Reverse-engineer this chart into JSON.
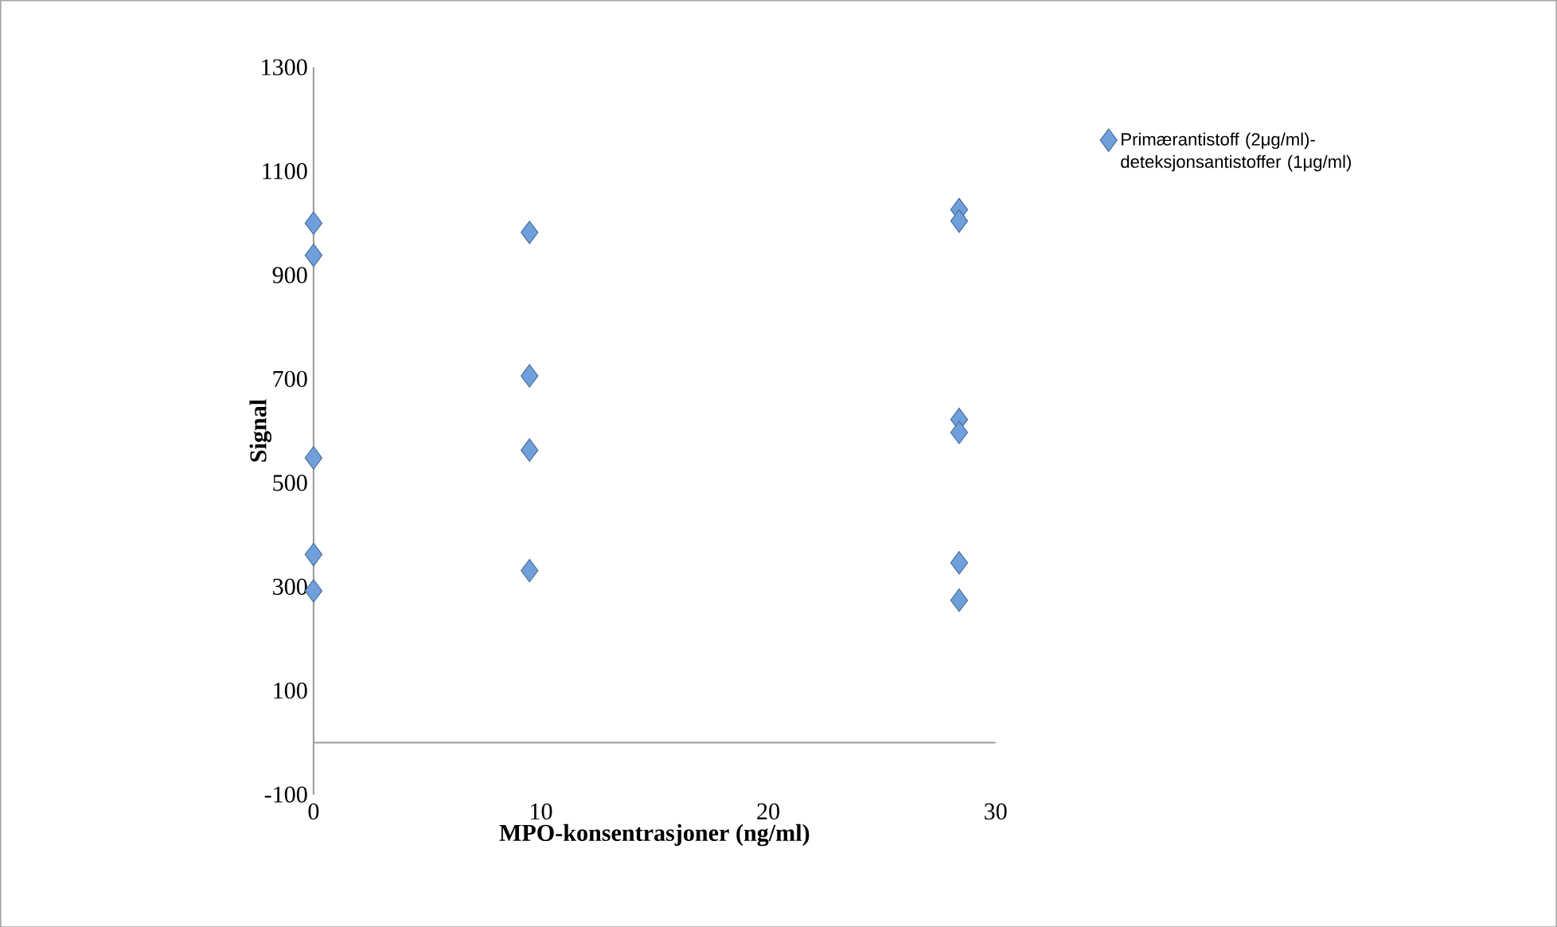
{
  "chart_data": {
    "type": "scatter",
    "xlabel": "MPO-konsentrasjoner (ng/ml)",
    "ylabel": "Signal",
    "xlim": [
      0,
      30
    ],
    "xticks": [
      0,
      10,
      20,
      30
    ],
    "ylim": [
      -100,
      1300
    ],
    "yticks": [
      -100,
      100,
      300,
      500,
      700,
      900,
      1100,
      1300
    ],
    "marker": "diamond",
    "legend": "top right",
    "series": [
      {
        "name": "Primærantistoff (2μg/ml)-deteksjonsantistoffer (1μg/ml)",
        "color": "#6fa0dc",
        "x": [
          0,
          0,
          0,
          0,
          0,
          9.5,
          9.5,
          9.5,
          9.5,
          28.4,
          28.4,
          28.4,
          28.4,
          28.4,
          28.4
        ],
        "values": [
          1000,
          938,
          548,
          362,
          292,
          982,
          706,
          563,
          331,
          1026,
          1004,
          622,
          597,
          346,
          274
        ]
      }
    ]
  }
}
